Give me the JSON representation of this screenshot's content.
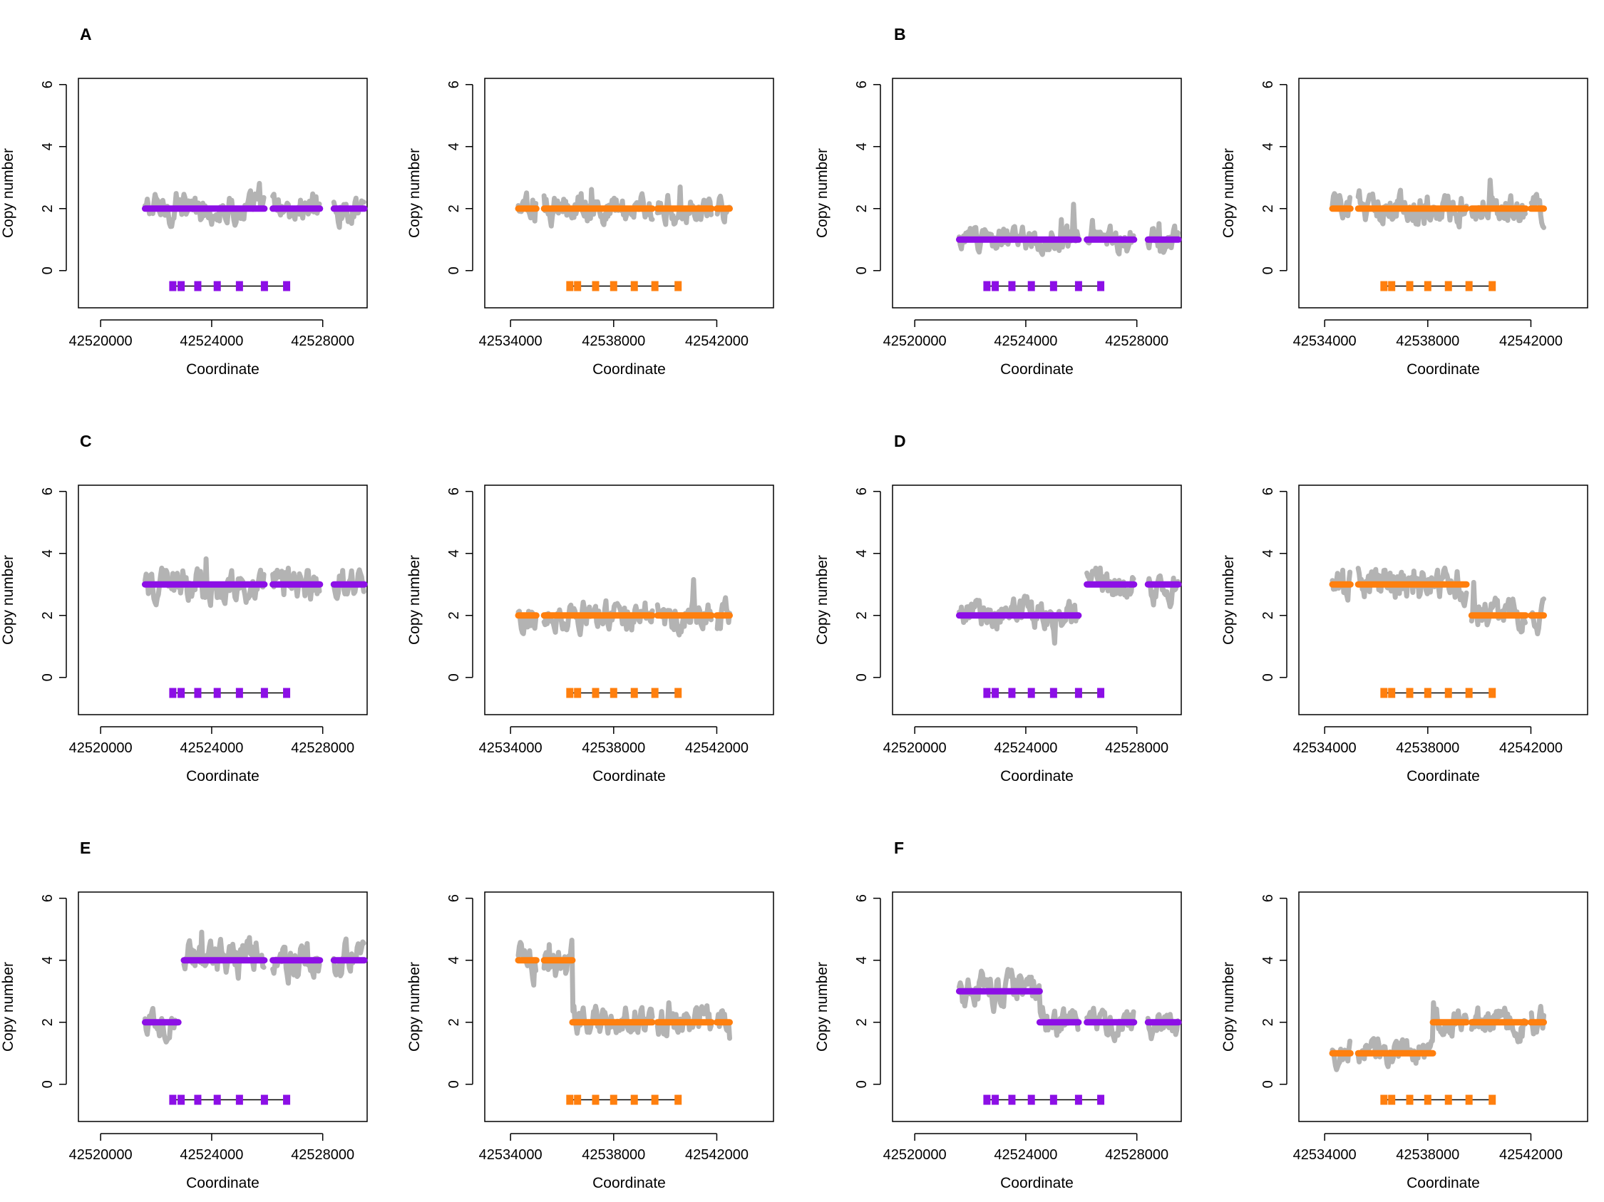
{
  "figure": {
    "panels": [
      {
        "letter": "A",
        "row": 0,
        "col": 0
      },
      {
        "letter": "B",
        "row": 0,
        "col": 1
      },
      {
        "letter": "C",
        "row": 1,
        "col": 0
      },
      {
        "letter": "D",
        "row": 1,
        "col": 1
      },
      {
        "letter": "E",
        "row": 2,
        "col": 0
      },
      {
        "letter": "F",
        "row": 2,
        "col": 1
      }
    ],
    "colors": {
      "raw": "#b3b3b3",
      "left_segment": "#8c0fe6",
      "right_segment": "#ff7f0e",
      "frame": "#000000"
    }
  },
  "chart_data": {
    "type": "scatter",
    "xlabel": "Coordinate",
    "ylabel": "Copy number",
    "ylim": [
      -1.2,
      6.2
    ],
    "yticks": [
      0,
      2,
      4,
      6
    ],
    "left_region": {
      "xlim": [
        42519200,
        42529600
      ],
      "xticks": [
        42520000,
        42524000,
        42528000
      ],
      "xtick_labels": [
        "42520000",
        "42524000",
        "42528000"
      ],
      "exons": [
        42522600,
        42522900,
        42523500,
        42524200,
        42525000,
        42525900,
        42526700
      ],
      "gene_line": [
        42522600,
        42526700
      ],
      "gene_y": -0.5
    },
    "right_region": {
      "xlim": [
        42533000,
        42544200
      ],
      "xticks": [
        42534000,
        42538000,
        42542000
      ],
      "xtick_labels": [
        "42534000",
        "42538000",
        "42542000"
      ],
      "exons": [
        42536300,
        42536600,
        42537300,
        42538000,
        42538800,
        42539600,
        42540500
      ],
      "gene_line": [
        42536300,
        42540500
      ],
      "gene_y": -0.5
    },
    "panels": [
      {
        "letter": "A",
        "left": {
          "data_range": [
            42521600,
            42529500
          ],
          "gaps": [
            [
              42525900,
              42526200
            ],
            [
              42527900,
              42528400
            ]
          ],
          "segments": [
            {
              "x0": 42521600,
              "x1": 42525900,
              "cn": 2
            },
            {
              "x0": 42526200,
              "x1": 42527900,
              "cn": 2
            },
            {
              "x0": 42528400,
              "x1": 42529500,
              "cn": 2
            }
          ]
        },
        "right": {
          "data_range": [
            42534300,
            42542500
          ],
          "gaps": [
            [
              42535000,
              42535300
            ],
            [
              42539500,
              42539700
            ],
            [
              42541800,
              42542000
            ]
          ],
          "segments": [
            {
              "x0": 42534300,
              "x1": 42535000,
              "cn": 2
            },
            {
              "x0": 42535300,
              "x1": 42539500,
              "cn": 2
            },
            {
              "x0": 42539700,
              "x1": 42541800,
              "cn": 2
            },
            {
              "x0": 42542000,
              "x1": 42542500,
              "cn": 2
            }
          ]
        }
      },
      {
        "letter": "B",
        "left": {
          "data_range": [
            42521600,
            42529500
          ],
          "gaps": [
            [
              42525900,
              42526200
            ],
            [
              42527900,
              42528400
            ]
          ],
          "segments": [
            {
              "x0": 42521600,
              "x1": 42525900,
              "cn": 1
            },
            {
              "x0": 42526200,
              "x1": 42527900,
              "cn": 1
            },
            {
              "x0": 42528400,
              "x1": 42529500,
              "cn": 1
            }
          ]
        },
        "right": {
          "data_range": [
            42534300,
            42542500
          ],
          "gaps": [
            [
              42535000,
              42535300
            ],
            [
              42539500,
              42539700
            ],
            [
              42541800,
              42542000
            ]
          ],
          "segments": [
            {
              "x0": 42534300,
              "x1": 42535000,
              "cn": 2
            },
            {
              "x0": 42535300,
              "x1": 42539500,
              "cn": 2
            },
            {
              "x0": 42539700,
              "x1": 42541800,
              "cn": 2
            },
            {
              "x0": 42542000,
              "x1": 42542500,
              "cn": 2
            }
          ]
        }
      },
      {
        "letter": "C",
        "left": {
          "data_range": [
            42521600,
            42529500
          ],
          "gaps": [
            [
              42525900,
              42526200
            ],
            [
              42527900,
              42528400
            ]
          ],
          "segments": [
            {
              "x0": 42521600,
              "x1": 42525900,
              "cn": 3
            },
            {
              "x0": 42526200,
              "x1": 42527900,
              "cn": 3
            },
            {
              "x0": 42528400,
              "x1": 42529500,
              "cn": 3
            }
          ]
        },
        "right": {
          "data_range": [
            42534300,
            42542500
          ],
          "gaps": [
            [
              42535000,
              42535300
            ],
            [
              42539500,
              42539700
            ],
            [
              42541800,
              42542000
            ]
          ],
          "segments": [
            {
              "x0": 42534300,
              "x1": 42535000,
              "cn": 2
            },
            {
              "x0": 42535300,
              "x1": 42539500,
              "cn": 2
            },
            {
              "x0": 42539700,
              "x1": 42541800,
              "cn": 2
            },
            {
              "x0": 42542000,
              "x1": 42542500,
              "cn": 2
            }
          ]
        }
      },
      {
        "letter": "D",
        "left": {
          "data_range": [
            42521600,
            42529500
          ],
          "gaps": [
            [
              42525900,
              42526200
            ],
            [
              42527900,
              42528400
            ]
          ],
          "segments": [
            {
              "x0": 42521600,
              "x1": 42525900,
              "cn": 2
            },
            {
              "x0": 42526200,
              "x1": 42527900,
              "cn": 3
            },
            {
              "x0": 42528400,
              "x1": 42529500,
              "cn": 3
            }
          ]
        },
        "right": {
          "data_range": [
            42534300,
            42542500
          ],
          "gaps": [
            [
              42535000,
              42535300
            ],
            [
              42539500,
              42539700
            ],
            [
              42541800,
              42542000
            ]
          ],
          "segments": [
            {
              "x0": 42534300,
              "x1": 42535000,
              "cn": 3
            },
            {
              "x0": 42535300,
              "x1": 42539500,
              "cn": 3
            },
            {
              "x0": 42539700,
              "x1": 42541800,
              "cn": 2
            },
            {
              "x0": 42542000,
              "x1": 42542500,
              "cn": 2
            }
          ]
        }
      },
      {
        "letter": "E",
        "left": {
          "data_range": [
            42521600,
            42529500
          ],
          "gaps": [
            [
              42522800,
              42523000
            ],
            [
              42525900,
              42526200
            ],
            [
              42527900,
              42528400
            ]
          ],
          "segments": [
            {
              "x0": 42521600,
              "x1": 42522800,
              "cn": 2
            },
            {
              "x0": 42523000,
              "x1": 42525900,
              "cn": 4
            },
            {
              "x0": 42526200,
              "x1": 42527900,
              "cn": 4
            },
            {
              "x0": 42528400,
              "x1": 42529500,
              "cn": 4
            }
          ]
        },
        "right": {
          "data_range": [
            42534300,
            42542500
          ],
          "gaps": [
            [
              42535000,
              42535300
            ],
            [
              42539500,
              42539700
            ],
            [
              42541800,
              42542000
            ]
          ],
          "segments": [
            {
              "x0": 42534300,
              "x1": 42535000,
              "cn": 4
            },
            {
              "x0": 42535300,
              "x1": 42536400,
              "cn": 4
            },
            {
              "x0": 42536400,
              "x1": 42539500,
              "cn": 2
            },
            {
              "x0": 42539700,
              "x1": 42541800,
              "cn": 2
            },
            {
              "x0": 42542000,
              "x1": 42542500,
              "cn": 2
            }
          ]
        }
      },
      {
        "letter": "F",
        "left": {
          "data_range": [
            42521600,
            42529500
          ],
          "gaps": [
            [
              42525900,
              42526200
            ],
            [
              42527900,
              42528400
            ]
          ],
          "segments": [
            {
              "x0": 42521600,
              "x1": 42524500,
              "cn": 3
            },
            {
              "x0": 42524500,
              "x1": 42525900,
              "cn": 2
            },
            {
              "x0": 42526200,
              "x1": 42527900,
              "cn": 2
            },
            {
              "x0": 42528400,
              "x1": 42529500,
              "cn": 2
            }
          ]
        },
        "right": {
          "data_range": [
            42534300,
            42542500
          ],
          "gaps": [
            [
              42535000,
              42535300
            ],
            [
              42539500,
              42539700
            ],
            [
              42541800,
              42542000
            ]
          ],
          "segments": [
            {
              "x0": 42534300,
              "x1": 42535000,
              "cn": 1
            },
            {
              "x0": 42535300,
              "x1": 42538200,
              "cn": 1
            },
            {
              "x0": 42538200,
              "x1": 42539500,
              "cn": 2
            },
            {
              "x0": 42539700,
              "x1": 42541800,
              "cn": 2
            },
            {
              "x0": 42542000,
              "x1": 42542500,
              "cn": 2
            }
          ]
        }
      }
    ]
  }
}
